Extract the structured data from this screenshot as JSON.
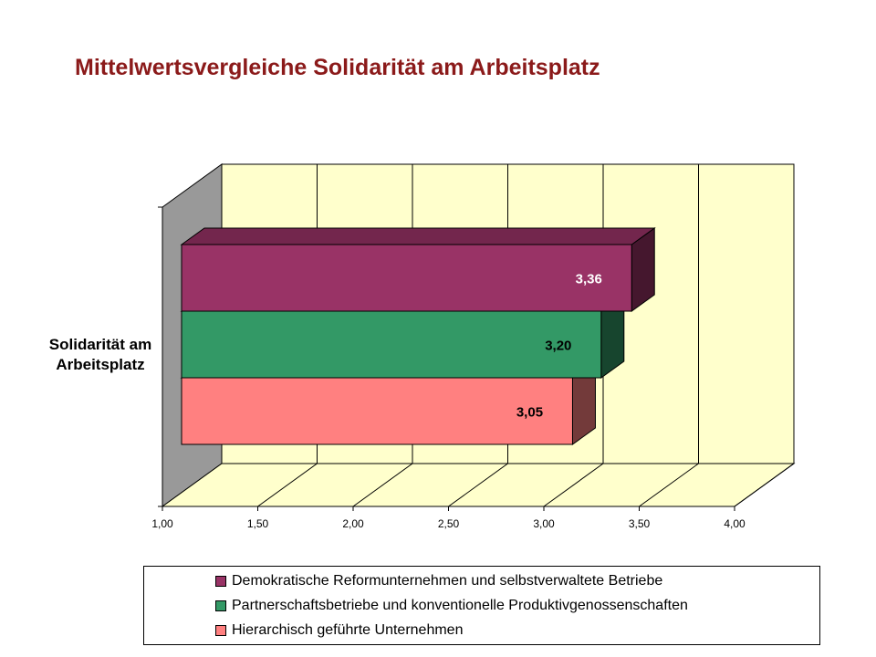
{
  "chart_data": {
    "type": "bar",
    "orientation": "horizontal",
    "style": "3d",
    "title": "Mittelwertsvergleiche Solidarität am Arbeitsplatz",
    "categories": [
      "Solidarität am Arbeitsplatz"
    ],
    "category_label_lines": [
      "Solidarität am",
      "Arbeitsplatz"
    ],
    "series": [
      {
        "name": "Demokratische Reformunternehmen und selbstverwaltete Betriebe",
        "values": [
          3.36
        ],
        "label": "3,36",
        "color": "#993366",
        "label_color": "#ffffff"
      },
      {
        "name": "Partnerschaftsbetriebe und konventionelle Produktivgenossenschaften",
        "values": [
          3.2
        ],
        "label": "3,20",
        "color": "#339966",
        "label_color": "#000000"
      },
      {
        "name": "Hierarchisch geführte Unternehmen",
        "values": [
          3.05
        ],
        "label": "3,05",
        "color": "#ff8080",
        "label_color": "#000000"
      }
    ],
    "xlim": [
      1.0,
      4.0
    ],
    "xticks": [
      1.0,
      1.5,
      2.0,
      2.5,
      3.0,
      3.5,
      4.0
    ],
    "xtick_labels": [
      "1,00",
      "1,50",
      "2,00",
      "2,50",
      "3,00",
      "3,50",
      "4,00"
    ],
    "grid": true,
    "legend_position": "bottom",
    "colors": {
      "title": "#8b1a1a",
      "back_wall": "#ffffcc",
      "side_wall": "#999999",
      "floor": "#ffffcc"
    }
  }
}
